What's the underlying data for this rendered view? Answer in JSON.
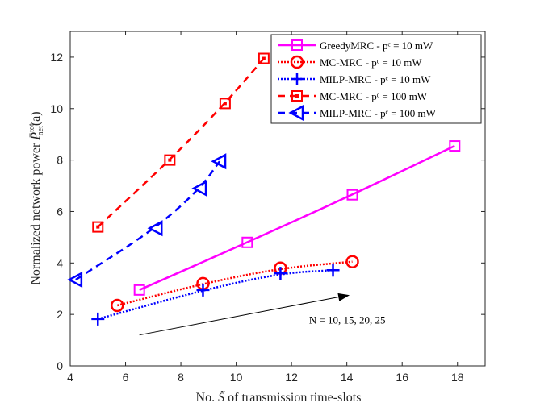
{
  "chart_data": {
    "type": "line",
    "title": "",
    "xlabel": "No. S̃ of transmission time-slots",
    "ylabel": "Normalized network power P̄ᵗᵒᵗₙₑₜ(a)",
    "xlim": [
      4,
      19
    ],
    "ylim": [
      0,
      13
    ],
    "xticks": [
      4,
      6,
      8,
      10,
      12,
      14,
      16,
      18
    ],
    "yticks": [
      0,
      2,
      4,
      6,
      8,
      10,
      12
    ],
    "grid": false,
    "legend_position": "top-right",
    "series": [
      {
        "name": "GreedyMRC - p^c = 10 mW",
        "legend": "GreedyMRC - pᶜ = 10 mW",
        "color": "#ff00ff",
        "line": "solid",
        "marker": "square",
        "x": [
          6.5,
          10.4,
          14.2,
          17.9
        ],
        "y": [
          2.95,
          4.8,
          6.65,
          8.55
        ]
      },
      {
        "name": "MC-MRC - p^c = 10 mW",
        "legend": "MC-MRC - pᶜ = 10 mW",
        "color": "#ff0000",
        "line": "dotted",
        "marker": "circle",
        "x": [
          5.7,
          8.8,
          11.6,
          14.2
        ],
        "y": [
          2.35,
          3.2,
          3.8,
          4.05
        ]
      },
      {
        "name": "MILP-MRC - p^c = 10 mW",
        "legend": "MILP-MRC - pᶜ = 10 mW",
        "color": "#0000ff",
        "line": "dotted",
        "marker": "plus",
        "x": [
          5.0,
          8.8,
          11.6,
          13.5
        ],
        "y": [
          1.82,
          2.95,
          3.6,
          3.72
        ]
      },
      {
        "name": "MC-MRC - p^c = 100 mW",
        "legend": "MC-MRC - pᶜ = 100 mW",
        "color": "#ff0000",
        "line": "dashed",
        "marker": "square-dot",
        "x": [
          5.0,
          7.6,
          9.6,
          11.0
        ],
        "y": [
          5.4,
          8.0,
          10.2,
          11.95
        ]
      },
      {
        "name": "MILP-MRC - p^c = 100 mW",
        "legend": "MILP-MRC - pᶜ = 100 mW",
        "color": "#0000ff",
        "line": "dashed",
        "marker": "triangle-left",
        "x": [
          4.2,
          7.1,
          8.7,
          9.4
        ],
        "y": [
          3.35,
          5.35,
          6.9,
          7.95
        ]
      }
    ],
    "annotation": {
      "text": "N = 10, 15, 20, 25",
      "arrow_from": [
        6.5,
        1.2
      ],
      "arrow_to": [
        14.1,
        2.75
      ],
      "text_at": [
        13.8,
        1.8
      ]
    }
  }
}
